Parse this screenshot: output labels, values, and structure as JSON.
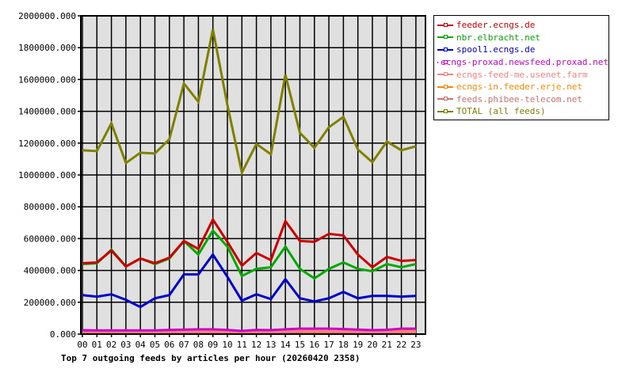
{
  "chart_data": {
    "type": "line",
    "title": "Top 7 outgoing feeds by articles per hour (20260420 2358)",
    "xlabel": "",
    "ylabel": "",
    "ylim": [
      0,
      2000000
    ],
    "y_ticks": [
      "0.000",
      "200000.000",
      "400000.000",
      "600000.000",
      "800000.000",
      "1000000.000",
      "1200000.000",
      "1400000.000",
      "1600000.000",
      "1800000.000",
      "2000000.000"
    ],
    "categories": [
      "00",
      "01",
      "02",
      "03",
      "04",
      "05",
      "06",
      "07",
      "08",
      "09",
      "10",
      "11",
      "12",
      "13",
      "14",
      "15",
      "16",
      "17",
      "18",
      "19",
      "20",
      "21",
      "22",
      "23"
    ],
    "grid": true,
    "legend_position": "right",
    "series": [
      {
        "name": "feeder.ecngs.de",
        "color": "#cc0000",
        "values": [
          445000,
          450000,
          525000,
          425000,
          475000,
          445000,
          480000,
          585000,
          535000,
          720000,
          580000,
          430000,
          510000,
          465000,
          710000,
          585000,
          580000,
          630000,
          620000,
          500000,
          420000,
          485000,
          460000,
          465000
        ]
      },
      {
        "name": "nbr.elbracht.net",
        "color": "#00aa00",
        "values": [
          440000,
          445000,
          530000,
          425000,
          475000,
          440000,
          475000,
          585000,
          500000,
          650000,
          550000,
          365000,
          410000,
          420000,
          550000,
          410000,
          350000,
          410000,
          450000,
          410000,
          395000,
          440000,
          420000,
          440000
        ]
      },
      {
        "name": "spool1.ecngs.de",
        "color": "#0000cc",
        "values": [
          245000,
          235000,
          250000,
          215000,
          170000,
          225000,
          245000,
          375000,
          375000,
          500000,
          360000,
          210000,
          250000,
          220000,
          345000,
          225000,
          205000,
          225000,
          265000,
          225000,
          240000,
          240000,
          235000,
          240000
        ]
      },
      {
        "name": "ecngs-proxad.newsfeed.proxad.net",
        "color": "#cc00cc",
        "values": [
          24000,
          23000,
          23000,
          23000,
          23000,
          23000,
          26000,
          28000,
          30000,
          30000,
          26000,
          20000,
          26000,
          25000,
          30000,
          34000,
          34000,
          34000,
          32000,
          28000,
          25000,
          27000,
          34000,
          34000
        ]
      },
      {
        "name": "ecngs-feed-me.usenet.farm",
        "color": "#ff8080",
        "values": [
          15000,
          15000,
          15000,
          15000,
          15000,
          15000,
          16000,
          16000,
          17000,
          17000,
          16000,
          14000,
          15000,
          16000,
          18000,
          20000,
          20000,
          18000,
          17000,
          15000,
          15000,
          16000,
          16000,
          16000
        ]
      },
      {
        "name": "ecngs-in.feeder.erje.net",
        "color": "#ff8800",
        "values": [
          18000,
          17000,
          17000,
          17000,
          17000,
          17000,
          18000,
          20000,
          22000,
          22000,
          20000,
          15000,
          18000,
          18000,
          20000,
          19000,
          17000,
          17000,
          18000,
          19000,
          22000,
          25000,
          22000,
          22000
        ]
      },
      {
        "name": "feeds.phibee-telecom.net",
        "color": "#cc7070",
        "values": [
          12000,
          12000,
          12000,
          12000,
          12000,
          12000,
          12000,
          12000,
          12000,
          12000,
          12000,
          12000,
          12000,
          12000,
          12000,
          12000,
          12000,
          12000,
          12000,
          12000,
          12000,
          12000,
          12000,
          12000
        ]
      },
      {
        "name": "TOTAL (all feeds)",
        "color": "#808000",
        "values": [
          1155000,
          1150000,
          1325000,
          1075000,
          1140000,
          1135000,
          1225000,
          1575000,
          1460000,
          1915000,
          1440000,
          1015000,
          1195000,
          1130000,
          1630000,
          1265000,
          1170000,
          1300000,
          1365000,
          1160000,
          1080000,
          1210000,
          1155000,
          1180000
        ]
      }
    ]
  }
}
